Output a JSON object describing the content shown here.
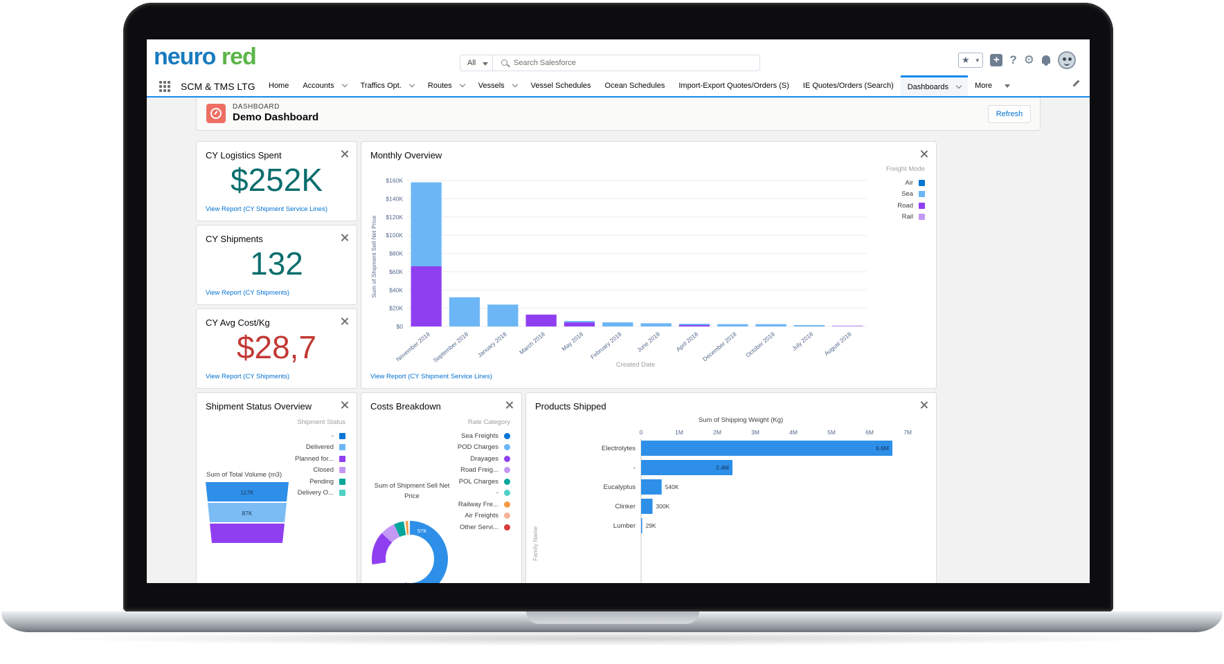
{
  "colors": {
    "air": "#0176d3",
    "sea": "#6cb6f5",
    "road": "#8f3ff0",
    "rail": "#c398f5",
    "teal": "#0b6e6e",
    "red": "#c23934",
    "link": "#0070d2"
  },
  "header": {
    "logo": {
      "part1": "neuro",
      "part2": "red"
    },
    "search_scope": "All",
    "search_placeholder": "Search Salesforce",
    "icons": [
      "star-icon",
      "add-icon",
      "help-icon",
      "gear-icon",
      "bell-icon",
      "avatar-icon"
    ]
  },
  "nav": {
    "app_name": "SCM & TMS LTG",
    "items": [
      {
        "label": "Home",
        "dropdown": false
      },
      {
        "label": "Accounts",
        "dropdown": true
      },
      {
        "label": "Traffics Opt.",
        "dropdown": true
      },
      {
        "label": "Routes",
        "dropdown": true
      },
      {
        "label": "Vessels",
        "dropdown": true
      },
      {
        "label": "Vessel Schedules",
        "dropdown": false
      },
      {
        "label": "Ocean Schedules",
        "dropdown": false
      },
      {
        "label": "Import-Export Quotes/Orders (S)",
        "dropdown": false
      },
      {
        "label": "IE Quotes/Orders (Search)",
        "dropdown": false
      },
      {
        "label": "Dashboards",
        "dropdown": true,
        "active": true
      },
      {
        "label": "More",
        "dropdown": true,
        "more": true
      }
    ]
  },
  "dashboard": {
    "kicker": "DASHBOARD",
    "title": "Demo Dashboard",
    "refresh_label": "Refresh"
  },
  "metrics": [
    {
      "title": "CY Logistics Spent",
      "value": "$252K",
      "link": "View Report (CY Shipment Service Lines)",
      "color": "teal"
    },
    {
      "title": "CY Shipments",
      "value": "132",
      "link": "View Report (CY Shipments)",
      "color": "teal"
    },
    {
      "title": "CY Avg Cost/Kg",
      "value": "$28,7",
      "link": "View Report (CY Shipments)",
      "color": "red"
    }
  ],
  "monthly": {
    "title": "Monthly Overview",
    "link": "View Report (CY Shipment Service Lines)",
    "chart_data": {
      "type": "bar",
      "stacked": true,
      "xlabel": "Created Date",
      "ylabel": "Sum of Shipment Sell Net Price",
      "ylim": [
        0,
        160000
      ],
      "yticks": [
        "$0",
        "$20K",
        "$40K",
        "$60K",
        "$80K",
        "$100K",
        "$120K",
        "$140K",
        "$160K"
      ],
      "legend_title": "Freight Mode",
      "legend_position": "top-right",
      "categories": [
        "November 2018",
        "September 2018",
        "January 2018",
        "March 2018",
        "May 2018",
        "February 2018",
        "June 2018",
        "April 2018",
        "December 2018",
        "October 2018",
        "July 2018",
        "August 2018"
      ],
      "series": [
        {
          "name": "Air",
          "color": "#0176d3",
          "values": [
            0,
            0,
            0,
            0,
            0,
            0,
            0,
            0,
            0,
            0,
            0,
            0
          ]
        },
        {
          "name": "Sea",
          "color": "#6cb6f5",
          "values": [
            92000,
            32000,
            24000,
            0,
            1500,
            4500,
            3500,
            1500,
            2500,
            2500,
            1500,
            0
          ]
        },
        {
          "name": "Road",
          "color": "#8f3ff0",
          "values": [
            66000,
            0,
            0,
            13000,
            4500,
            0,
            0,
            1500,
            0,
            0,
            0,
            0
          ]
        },
        {
          "name": "Rail",
          "color": "#c398f5",
          "values": [
            0,
            0,
            0,
            0,
            0,
            0,
            0,
            0,
            0,
            0,
            0,
            1000
          ]
        }
      ]
    }
  },
  "shipment_status": {
    "title": "Shipment Status Overview",
    "legend_title": "Shipment Status",
    "chart_data": {
      "type": "funnel",
      "ylabel": "Sum of Total Volume (m3)",
      "legend_title": "Shipment Status",
      "categories": [
        "-",
        "Delivered",
        "Planned for...",
        "Closed",
        "Pending",
        "Delivery O..."
      ],
      "colors": [
        "#0176d3",
        "#6cb6f5",
        "#8f3ff0",
        "#c398f5",
        "#06a59a",
        "#4fd1c5"
      ],
      "visible_labels": [
        "117K",
        "87K"
      ]
    }
  },
  "costs": {
    "title": "Costs Breakdown",
    "legend_title": "Rate Category",
    "chart_data": {
      "type": "donut",
      "ylabel": "Sum of Shipment Sell Net Price",
      "legend_title": "Rate Category",
      "categories": [
        "Sea Freights",
        "POD Charges",
        "Drayages",
        "Road Freig...",
        "POL Charges",
        "-",
        "Railway Fre...",
        "Air Freights",
        "Other Servi..."
      ],
      "colors": [
        "#0176d3",
        "#6cb6f5",
        "#8f3ff0",
        "#c398f5",
        "#06a59a",
        "#4fd1c5",
        "#f59a43",
        "#f8b39a",
        "#d93b3b"
      ],
      "visible_labels": [
        "57K"
      ]
    }
  },
  "products": {
    "title": "Products Shipped",
    "chart_data": {
      "type": "bar",
      "orientation": "horizontal",
      "xlabel": "Sum of Shipping Weight (Kg)",
      "ylabel": "Family Name",
      "xlim": [
        0,
        7000000
      ],
      "xticks": [
        "0",
        "1M",
        "2M",
        "3M",
        "4M",
        "5M",
        "6M",
        "7M"
      ],
      "categories": [
        "Electrolytes",
        "-",
        "Eucalyptus",
        "Clinker",
        "Lumber"
      ],
      "values": [
        6600000,
        2400000,
        540000,
        300000,
        29000
      ],
      "labels": [
        "6.6M",
        "2.4M",
        "540K",
        "300K",
        "29K"
      ],
      "color": "#2e8fe8"
    }
  }
}
